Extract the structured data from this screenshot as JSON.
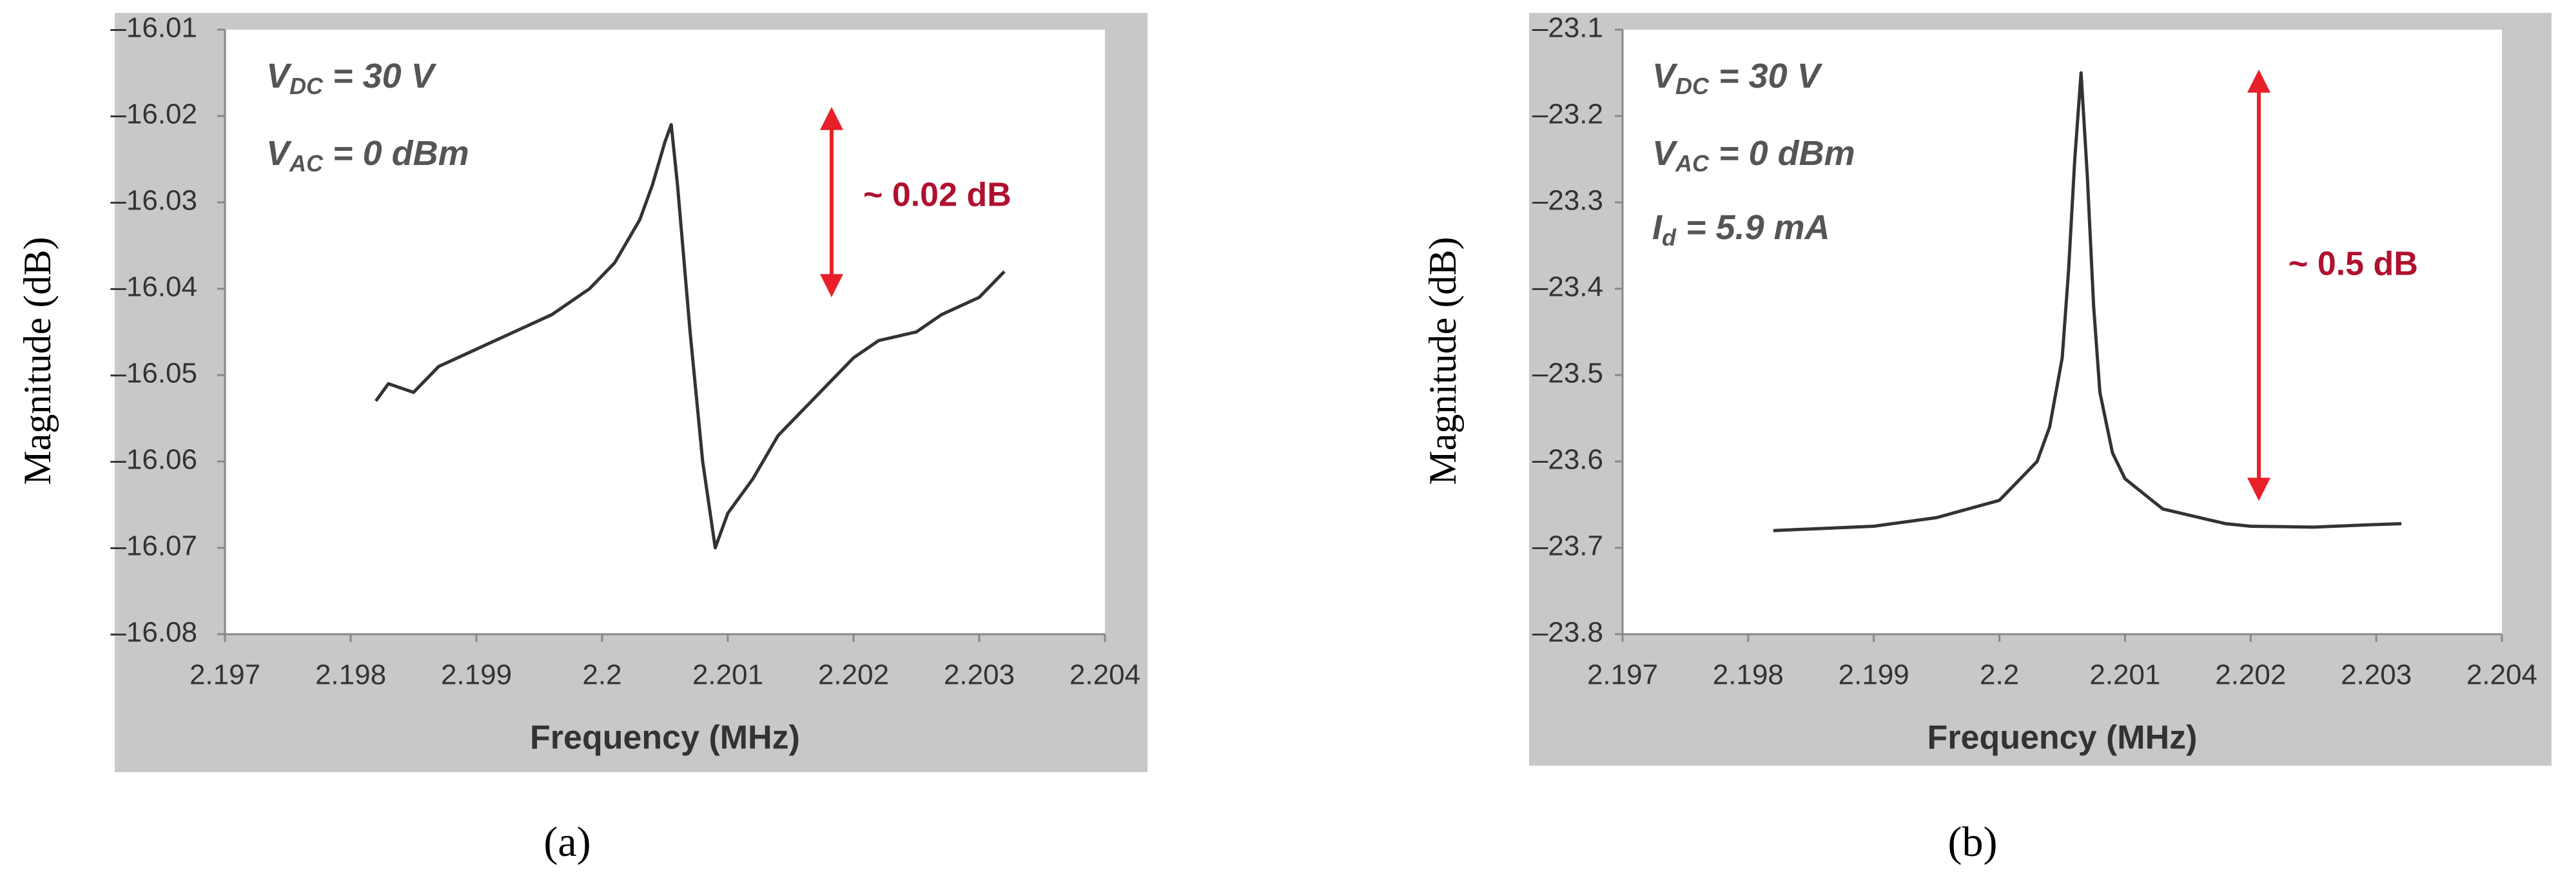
{
  "chart_data": [
    {
      "type": "line",
      "panel_label": "(a)",
      "x_label": "Frequency (MHz)",
      "y_label": "Magnitude (dB)",
      "annotations": [
        {
          "symbol": "V",
          "subscript": "DC",
          "text": " = 30 V"
        },
        {
          "symbol": "V",
          "subscript": "AC",
          "text": " = 0 dBm"
        }
      ],
      "range_label": "~ 0.02 dB",
      "x": [
        2.1982,
        2.1983,
        2.1985,
        2.1987,
        2.199,
        2.1993,
        2.1996,
        2.1999,
        2.2001,
        2.2003,
        2.2004,
        2.2005,
        2.20055,
        2.2006,
        2.2007,
        2.2008,
        2.2009,
        2.20095,
        2.201,
        2.2012,
        2.2014,
        2.2016,
        2.2018,
        2.202,
        2.2022,
        2.2025,
        2.2027,
        2.203,
        2.2032
      ],
      "series": [
        {
          "color": "#333333",
          "values": [
            -16.053,
            -16.051,
            -16.052,
            -16.049,
            -16.047,
            -16.045,
            -16.043,
            -16.04,
            -16.037,
            -16.032,
            -16.028,
            -16.023,
            -16.021,
            -16.028,
            -16.045,
            -16.06,
            -16.07,
            -16.068,
            -16.066,
            -16.062,
            -16.057,
            -16.054,
            -16.051,
            -16.048,
            -16.046,
            -16.045,
            -16.043,
            -16.041,
            -16.038
          ]
        }
      ],
      "xlim": [
        2.197,
        2.204
      ],
      "xticks": [
        2.197,
        2.198,
        2.199,
        2.2,
        2.201,
        2.202,
        2.203,
        2.204
      ],
      "ylim": [
        -16.08,
        -16.01
      ],
      "yticks": [
        {
          "value": -16.01,
          "label": "–16.01"
        },
        {
          "value": -16.02,
          "label": "–16.02"
        },
        {
          "value": -16.03,
          "label": "–16.03"
        },
        {
          "value": -16.04,
          "label": "–16.04"
        },
        {
          "value": -16.05,
          "label": "–16.05"
        },
        {
          "value": -16.06,
          "label": "–16.06"
        },
        {
          "value": -16.07,
          "label": "–16.07"
        },
        {
          "value": -16.08,
          "label": "–16.08"
        }
      ]
    },
    {
      "type": "line",
      "panel_label": "(b)",
      "x_label": "Frequency (MHz)",
      "y_label": "Magnitude (dB)",
      "annotations": [
        {
          "symbol": "V",
          "subscript": "DC",
          "text": " = 30 V"
        },
        {
          "symbol": "V",
          "subscript": "AC",
          "text": " = 0 dBm"
        },
        {
          "symbol": "I",
          "subscript": "d",
          "text": " = 5.9 mA"
        }
      ],
      "range_label": "~ 0.5 dB",
      "x": [
        2.1982,
        2.199,
        2.1995,
        2.2,
        2.2003,
        2.2004,
        2.2005,
        2.20055,
        2.2006,
        2.20065,
        2.2007,
        2.20075,
        2.2008,
        2.2009,
        2.201,
        2.2013,
        2.2018,
        2.202,
        2.2025,
        2.203,
        2.2032
      ],
      "series": [
        {
          "color": "#333333",
          "values": [
            -23.68,
            -23.675,
            -23.665,
            -23.645,
            -23.6,
            -23.56,
            -23.48,
            -23.38,
            -23.25,
            -23.15,
            -23.27,
            -23.42,
            -23.52,
            -23.59,
            -23.62,
            -23.655,
            -23.672,
            -23.675,
            -23.676,
            -23.673,
            -23.672
          ]
        }
      ],
      "xlim": [
        2.197,
        2.204
      ],
      "xticks": [
        2.197,
        2.198,
        2.199,
        2.2,
        2.201,
        2.202,
        2.203,
        2.204
      ],
      "ylim": [
        -23.8,
        -23.1
      ],
      "yticks": [
        {
          "value": -23.1,
          "label": "–23.1"
        },
        {
          "value": -23.2,
          "label": "–23.2"
        },
        {
          "value": -23.3,
          "label": "–23.3"
        },
        {
          "value": -23.4,
          "label": "–23.4"
        },
        {
          "value": -23.5,
          "label": "–23.5"
        },
        {
          "value": -23.6,
          "label": "–23.6"
        },
        {
          "value": -23.7,
          "label": "–23.7"
        },
        {
          "value": -23.8,
          "label": "–23.8"
        }
      ]
    }
  ]
}
